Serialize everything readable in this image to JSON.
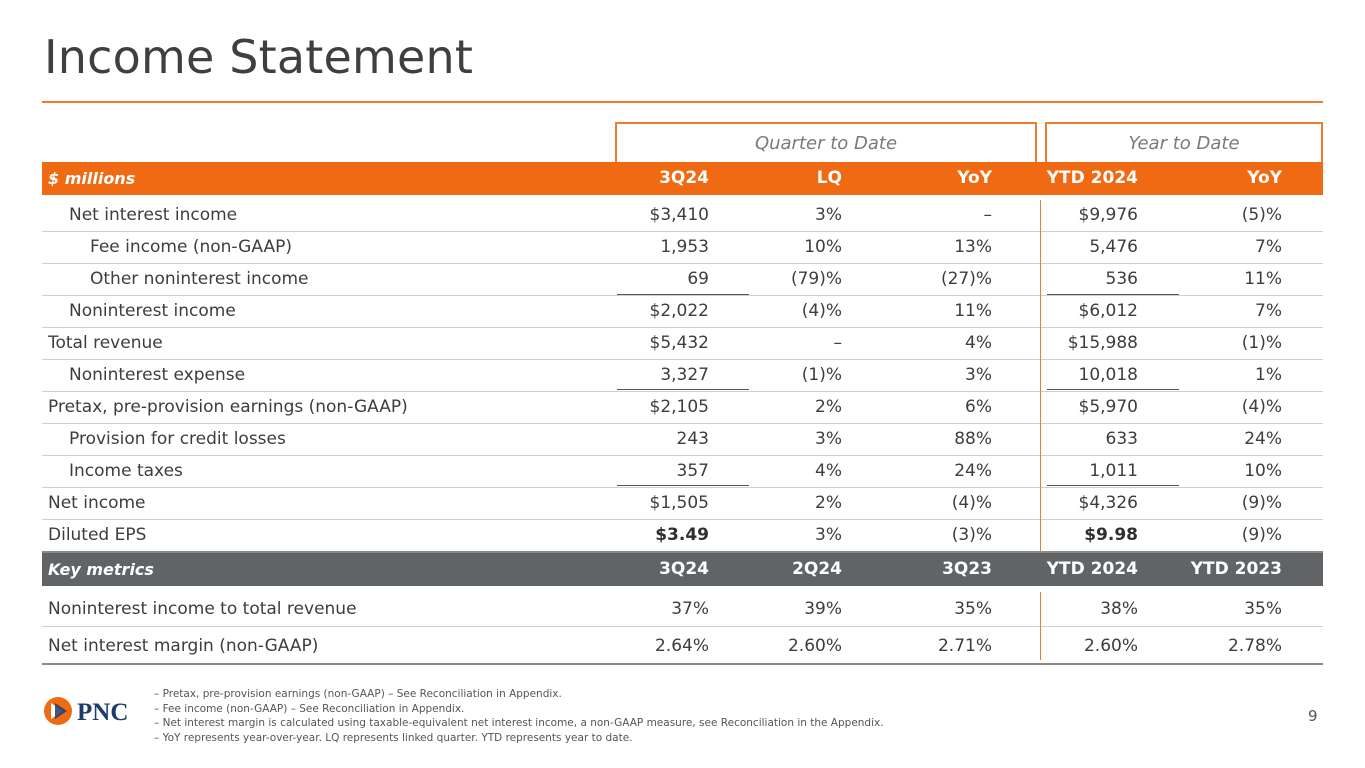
{
  "title": "Income Statement",
  "groups": {
    "qtd": "Quarter to Date",
    "ytd": "Year to Date"
  },
  "header": {
    "label": "$ millions",
    "cols": [
      "3Q24",
      "LQ",
      "YoY",
      "YTD 2024",
      "YoY"
    ]
  },
  "rows": [
    {
      "label": "Net interest income",
      "values": [
        "$3,410",
        "3%",
        "–",
        "$9,976",
        "(5)%"
      ]
    },
    {
      "label": "Fee income (non-GAAP)",
      "values": [
        "1,953",
        "10%",
        "13%",
        "5,476",
        "7%"
      ]
    },
    {
      "label": "Other noninterest income",
      "values": [
        "69",
        "(79)%",
        "(27)%",
        "536",
        "11%"
      ]
    },
    {
      "label": "Noninterest income",
      "values": [
        "$2,022",
        "(4)%",
        "11%",
        "$6,012",
        "7%"
      ]
    },
    {
      "label": "Total revenue",
      "values": [
        "$5,432",
        "–",
        "4%",
        "$15,988",
        "(1)%"
      ]
    },
    {
      "label": "Noninterest expense",
      "values": [
        "3,327",
        "(1)%",
        "3%",
        "10,018",
        "1%"
      ]
    },
    {
      "label": "Pretax, pre-provision earnings (non-GAAP)",
      "values": [
        "$2,105",
        "2%",
        "6%",
        "$5,970",
        "(4)%"
      ]
    },
    {
      "label": "Provision for credit losses",
      "values": [
        "243",
        "3%",
        "88%",
        "633",
        "24%"
      ]
    },
    {
      "label": "Income taxes",
      "values": [
        "357",
        "4%",
        "24%",
        "1,011",
        "10%"
      ]
    },
    {
      "label": "Net income",
      "values": [
        "$1,505",
        "2%",
        "(4)%",
        "$4,326",
        "(9)%"
      ]
    },
    {
      "label": "Diluted EPS",
      "values": [
        "$3.49",
        "3%",
        "(3)%",
        "$9.98",
        "(9)%"
      ]
    }
  ],
  "key_header": {
    "label": "Key metrics",
    "cols": [
      "3Q24",
      "2Q24",
      "3Q23",
      "YTD 2024",
      "YTD 2023"
    ]
  },
  "key_rows": [
    {
      "label": "Noninterest income to total revenue",
      "values": [
        "37%",
        "39%",
        "35%",
        "38%",
        "35%"
      ]
    },
    {
      "label": "Net interest margin (non-GAAP)",
      "values": [
        "2.64%",
        "2.60%",
        "2.71%",
        "2.60%",
        "2.78%"
      ]
    }
  ],
  "footnotes": [
    "– Pretax, pre-provision earnings (non-GAAP) – See Reconciliation in Appendix.",
    "– Fee income (non-GAAP) – See Reconciliation in Appendix.",
    "– Net interest margin is calculated using taxable-equivalent net interest income, a non-GAAP measure, see Reconciliation in the Appendix.",
    "– YoY represents year-over-year. LQ represents linked quarter. YTD represents year to date."
  ],
  "logo_text": "PNC",
  "page_number": "9",
  "colors": {
    "accent": "#ef6a12",
    "band_gray": "#616467",
    "logo_blue": "#1d3c6e"
  }
}
